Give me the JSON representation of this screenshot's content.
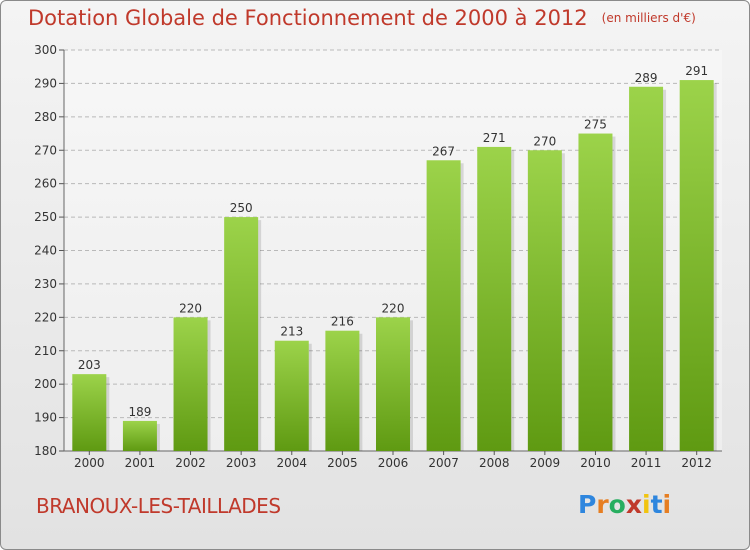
{
  "header": {
    "title": "Dotation Globale de Fonctionnement de 2000 à 2012",
    "subtitle": "(en milliers d'€)"
  },
  "footer": {
    "commune": "BRANOUX-LES-TAILLADES",
    "logo_letters": [
      "P",
      "r",
      "o",
      "x",
      "i",
      "t",
      "i"
    ],
    "logo_colors": [
      "#2e86de",
      "#e67e22",
      "#27ae60",
      "#c0392b",
      "#f1c40f",
      "#2e86de",
      "#e67e22"
    ]
  },
  "colors": {
    "bar_light": "#9cd34a",
    "bar_dark": "#5f9a12",
    "title": "#c0392b"
  },
  "chart_data": {
    "type": "bar",
    "title": "Dotation Globale de Fonctionnement de 2000 à 2012",
    "subtitle": "(en milliers d'€)",
    "categories": [
      "2000",
      "2001",
      "2002",
      "2003",
      "2004",
      "2005",
      "2006",
      "2007",
      "2008",
      "2009",
      "2010",
      "2011",
      "2012"
    ],
    "values": [
      203,
      189,
      220,
      250,
      213,
      216,
      220,
      267,
      271,
      270,
      275,
      289,
      291
    ],
    "ylim": [
      180,
      300
    ],
    "yticks": [
      180,
      190,
      200,
      210,
      220,
      230,
      240,
      250,
      260,
      270,
      280,
      290,
      300
    ],
    "grid": true
  }
}
